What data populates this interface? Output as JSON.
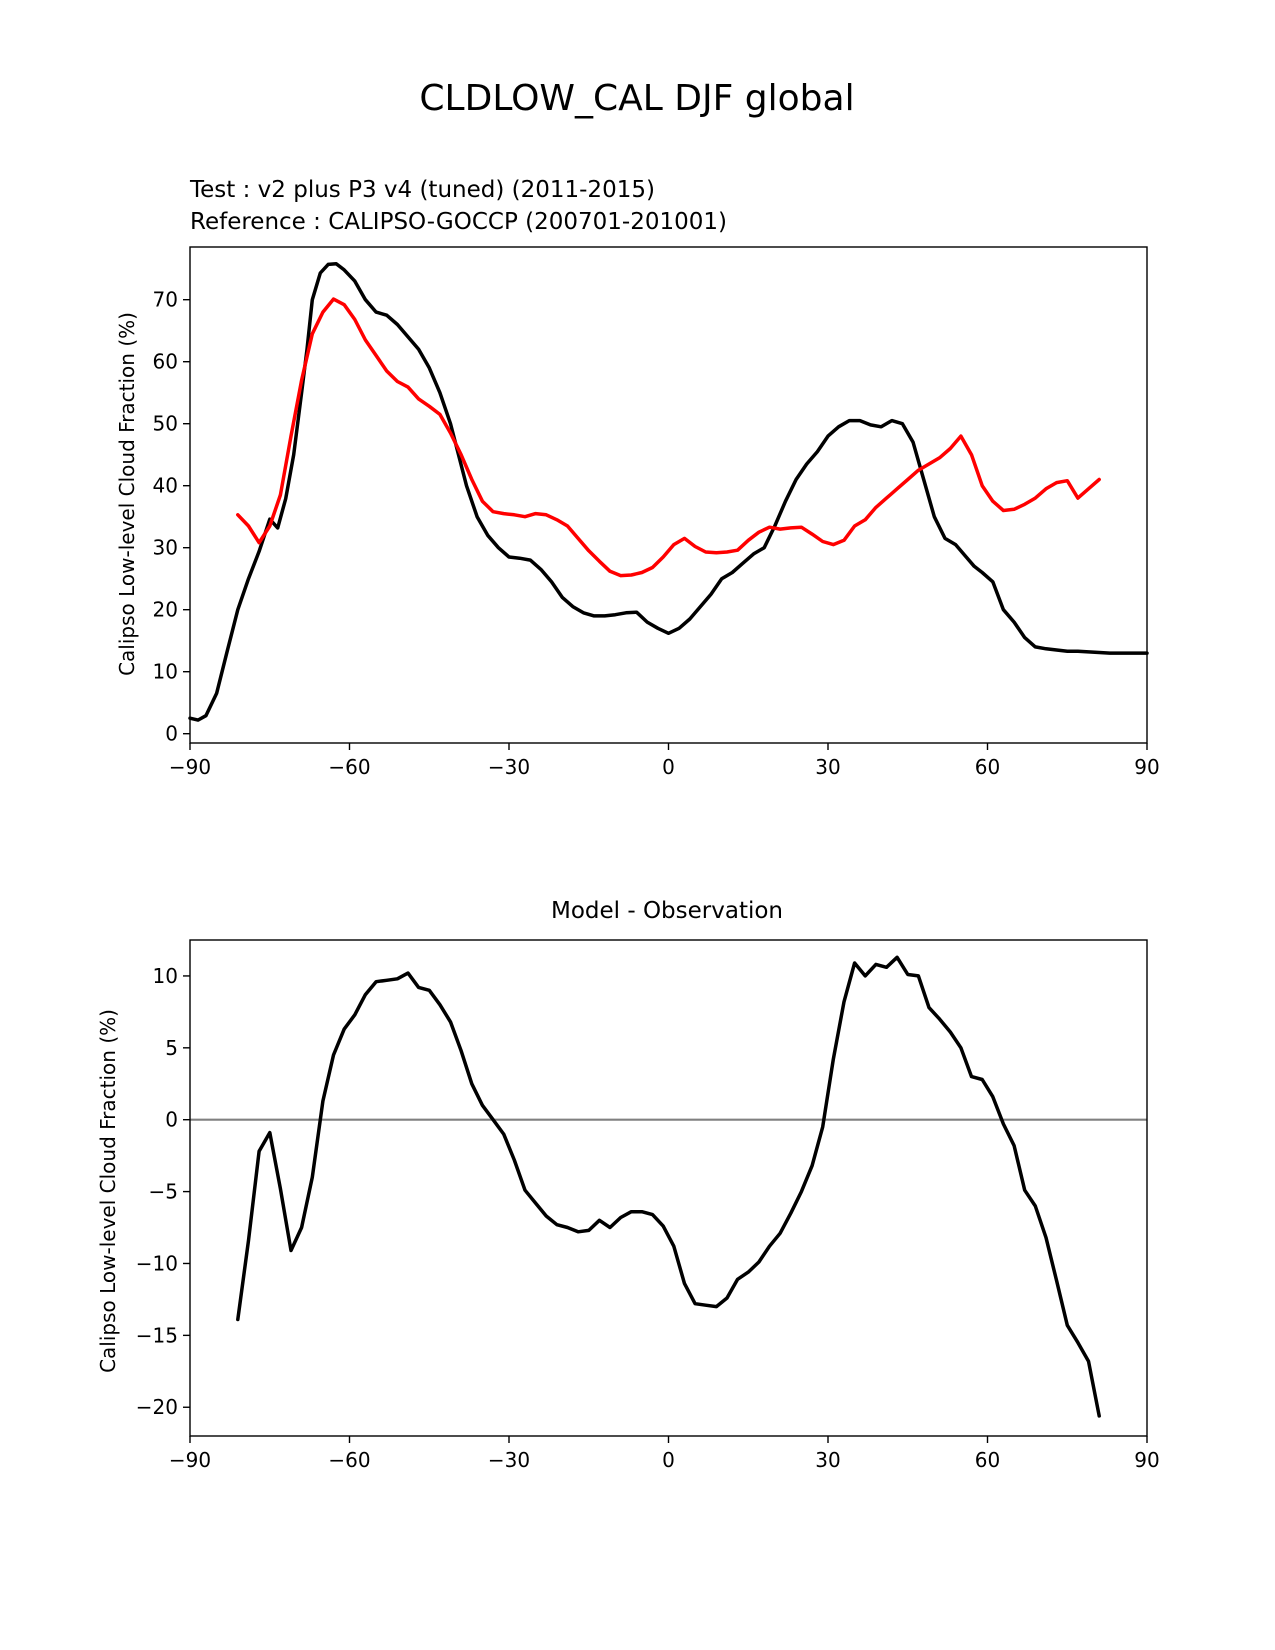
{
  "figure": {
    "title": "CLDLOW_CAL DJF global"
  },
  "colors": {
    "test": "#000000",
    "reference": "#ff0000",
    "zero_line": "#808080",
    "axes": "#000000"
  },
  "chart_data": [
    {
      "type": "line",
      "subtitle_test": "Test : v2 plus P3 v4 (tuned) (2011-2015)",
      "subtitle_reference": "Reference : CALIPSO-GOCCP (200701-201001)",
      "ylabel": "Calipso Low-level Cloud Fraction (%)",
      "xlim": [
        -90,
        90
      ],
      "ylim": [
        -1.5,
        78.5
      ],
      "xticks": [
        -90,
        -60,
        -30,
        0,
        30,
        60,
        90
      ],
      "xtick_labels": [
        "−90",
        "−60",
        "−30",
        "0",
        "30",
        "60",
        "90"
      ],
      "yticks": [
        0,
        10,
        20,
        30,
        40,
        50,
        60,
        70
      ],
      "ytick_labels": [
        "0",
        "10",
        "20",
        "30",
        "40",
        "50",
        "60",
        "70"
      ],
      "series": [
        {
          "name": "test",
          "x": [
            -90,
            -88.5,
            -87,
            -85,
            -83,
            -81,
            -79,
            -77,
            -75,
            -73.5,
            -72,
            -70.5,
            -69,
            -68,
            -67,
            -65.5,
            -64,
            -62.5,
            -61,
            -59,
            -57,
            -55,
            -53,
            -51,
            -49,
            -47,
            -45,
            -43,
            -41,
            -39.5,
            -38,
            -36,
            -34,
            -32,
            -30,
            -28,
            -26,
            -24,
            -22,
            -20,
            -18,
            -16,
            -14,
            -12,
            -10,
            -8,
            -6,
            -4,
            -2,
            0,
            2,
            4,
            6,
            8,
            10,
            12,
            14,
            16,
            18,
            20,
            22,
            24,
            26,
            28,
            30,
            32,
            34,
            36,
            38,
            40,
            42,
            44,
            46,
            48,
            50,
            52,
            54,
            56,
            57.5,
            59,
            61,
            63,
            65,
            67,
            69,
            71,
            73,
            75,
            77,
            79,
            81,
            83,
            85,
            87,
            89,
            90
          ],
          "y": [
            2.5,
            2.2,
            2.9,
            6.5,
            13.3,
            20.0,
            25.0,
            29.4,
            34.6,
            33.2,
            37.9,
            45.0,
            55.0,
            62.0,
            70.0,
            74.3,
            75.7,
            75.8,
            74.8,
            73.0,
            70.0,
            68.0,
            67.5,
            66.0,
            64.0,
            62.0,
            59.0,
            55.0,
            50.0,
            45.0,
            40.0,
            35.0,
            32.0,
            30.0,
            28.5,
            28.3,
            28.0,
            26.5,
            24.5,
            22.0,
            20.5,
            19.5,
            19.0,
            19.0,
            19.2,
            19.5,
            19.6,
            18.0,
            17.0,
            16.2,
            17.0,
            18.5,
            20.5,
            22.5,
            25.0,
            26.0,
            27.5,
            29.0,
            30.0,
            33.5,
            37.5,
            41.0,
            43.5,
            45.5,
            48.0,
            49.5,
            50.5,
            50.5,
            49.8,
            49.5,
            50.5,
            50.0,
            47.0,
            41.0,
            35.0,
            31.5,
            30.5,
            28.5,
            27.0,
            26.0,
            24.5,
            20.0,
            18.0,
            15.5,
            14.0,
            13.7,
            13.5,
            13.3,
            13.3,
            13.2,
            13.1,
            13.0,
            13.0,
            13.0,
            13.0,
            13.0
          ]
        },
        {
          "name": "reference",
          "x": [
            -81,
            -79,
            -77,
            -75,
            -73,
            -71,
            -69,
            -67,
            -65,
            -63,
            -61,
            -59,
            -57,
            -55,
            -53,
            -51,
            -49,
            -47,
            -45,
            -43,
            -41,
            -39,
            -37,
            -35,
            -33,
            -31,
            -29,
            -27,
            -25,
            -23,
            -21,
            -19,
            -17,
            -15,
            -13,
            -11,
            -9,
            -7,
            -5,
            -3,
            -1,
            1,
            3,
            5,
            7,
            9,
            11,
            13,
            15,
            17,
            19,
            21,
            23,
            25,
            27,
            29,
            31,
            33,
            35,
            37,
            39,
            41,
            43,
            45,
            47,
            49,
            51,
            53,
            55,
            57,
            59,
            61,
            63,
            65,
            67,
            69,
            71,
            73,
            75,
            77,
            79,
            81
          ],
          "y": [
            35.3,
            33.5,
            30.8,
            33.5,
            38.5,
            48.0,
            57.0,
            64.5,
            68.0,
            70.1,
            69.2,
            66.8,
            63.5,
            61.0,
            58.5,
            56.8,
            55.9,
            54.0,
            52.8,
            51.5,
            48.5,
            45.0,
            41.0,
            37.5,
            35.8,
            35.5,
            35.3,
            35.0,
            35.5,
            35.3,
            34.5,
            33.5,
            31.5,
            29.5,
            27.8,
            26.2,
            25.5,
            25.6,
            26.0,
            26.8,
            28.5,
            30.5,
            31.5,
            30.2,
            29.3,
            29.2,
            29.3,
            29.6,
            31.2,
            32.5,
            33.3,
            33.0,
            33.2,
            33.3,
            32.2,
            31.0,
            30.5,
            31.2,
            33.5,
            34.5,
            36.5,
            38.0,
            39.5,
            41.0,
            42.5,
            43.5,
            44.5,
            46.0,
            48.0,
            45.0,
            40.0,
            37.5,
            36.0,
            36.2,
            37.0,
            38.0,
            39.5,
            40.5,
            40.8,
            38.0,
            39.5,
            41.0
          ]
        }
      ]
    },
    {
      "type": "line",
      "title": "Model - Observation",
      "ylabel": "Calipso Low-level Cloud Fraction (%)",
      "xlim": [
        -90,
        90
      ],
      "ylim": [
        -22.0,
        12.5
      ],
      "xticks": [
        -90,
        -60,
        -30,
        0,
        30,
        60,
        90
      ],
      "xtick_labels": [
        "−90",
        "−60",
        "−30",
        "0",
        "30",
        "60",
        "90"
      ],
      "yticks": [
        -20,
        -15,
        -10,
        -5,
        0,
        5,
        10
      ],
      "ytick_labels": [
        "−20",
        "−15",
        "−10",
        "−5",
        "0",
        "5",
        "10"
      ],
      "zero_line": 0,
      "series": [
        {
          "name": "difference",
          "x": [
            -81,
            -79,
            -77,
            -75,
            -73,
            -71,
            -69,
            -67,
            -65,
            -63,
            -61,
            -59,
            -57,
            -55,
            -53,
            -51,
            -49,
            -47,
            -45,
            -43,
            -41,
            -39,
            -37,
            -35,
            -33,
            -31,
            -29,
            -27,
            -25,
            -23,
            -21,
            -19,
            -17,
            -15,
            -13,
            -11,
            -9,
            -7,
            -5,
            -3,
            -1,
            1,
            3,
            5,
            7,
            9,
            11,
            13,
            15,
            17,
            19,
            21,
            23,
            25,
            27,
            29,
            31,
            33,
            35,
            37,
            39,
            41,
            43,
            45,
            47,
            49,
            51,
            53,
            55,
            57,
            59,
            61,
            63,
            65,
            67,
            69,
            71,
            73,
            75,
            77,
            79,
            81
          ],
          "y": [
            -13.9,
            -8.4,
            -2.2,
            -0.9,
            -4.8,
            -9.1,
            -7.5,
            -4.0,
            1.3,
            4.5,
            6.3,
            7.3,
            8.7,
            9.6,
            9.7,
            9.8,
            10.2,
            9.2,
            9.0,
            8.0,
            6.8,
            4.8,
            2.5,
            1.0,
            0.0,
            -1.0,
            -2.8,
            -4.9,
            -5.8,
            -6.7,
            -7.3,
            -7.5,
            -7.8,
            -7.7,
            -7.0,
            -7.5,
            -6.8,
            -6.4,
            -6.4,
            -6.6,
            -7.4,
            -8.8,
            -11.4,
            -12.8,
            -12.9,
            -13.0,
            -12.4,
            -11.1,
            -10.6,
            -9.9,
            -8.8,
            -7.9,
            -6.5,
            -5.0,
            -3.2,
            -0.5,
            4.2,
            8.2,
            10.9,
            10.0,
            10.8,
            10.6,
            11.3,
            10.1,
            10.0,
            7.8,
            7.0,
            6.1,
            5.0,
            3.0,
            2.8,
            1.6,
            -0.3,
            -1.8,
            -4.9,
            -6.0,
            -8.2,
            -11.2,
            -14.3,
            -15.5,
            -16.8,
            -20.6
          ]
        }
      ]
    }
  ]
}
